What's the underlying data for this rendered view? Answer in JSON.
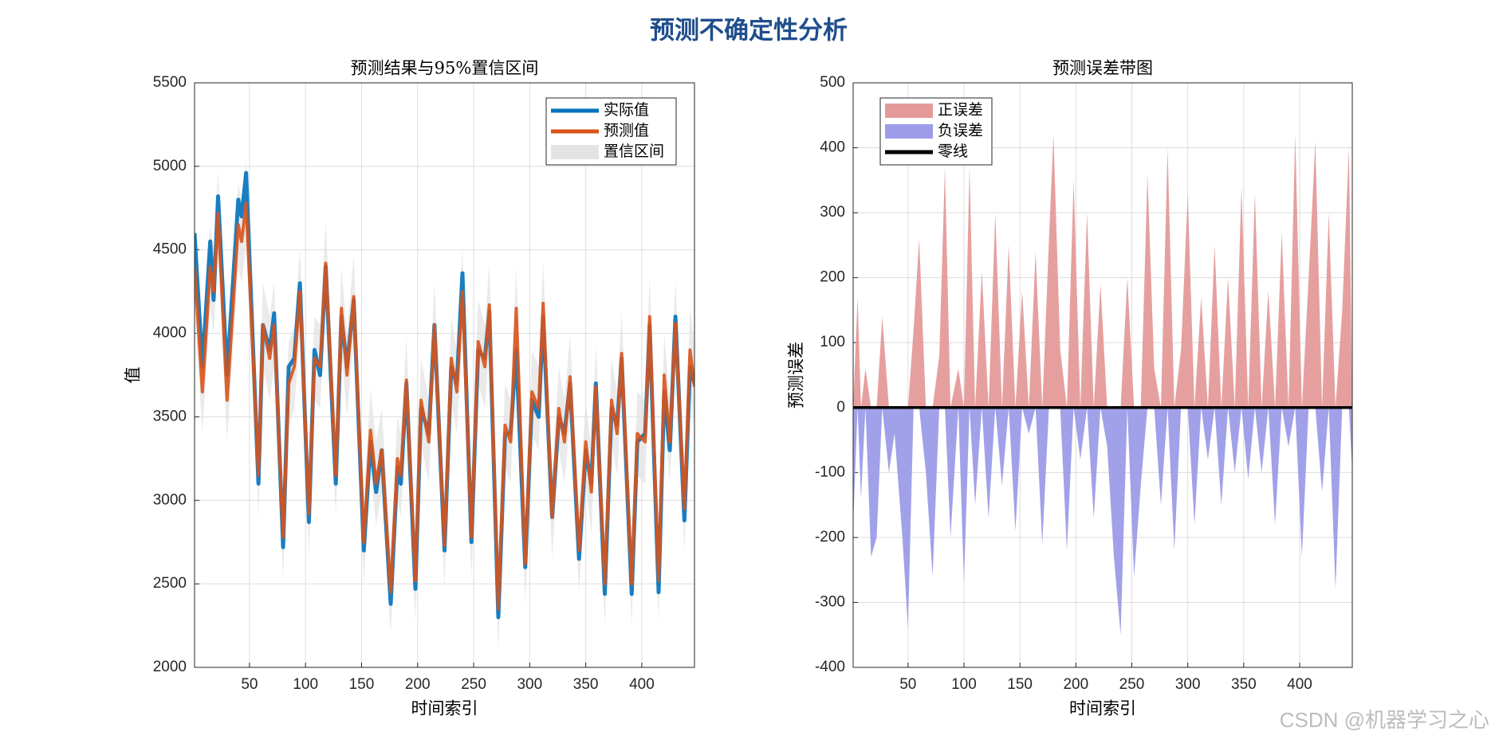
{
  "title": "预测不确定性分析",
  "watermark": "CSDN @机器学习之心",
  "chart_data": [
    {
      "type": "line",
      "title": "预测结果与95%置信区间",
      "xlabel": "时间索引",
      "ylabel": "值",
      "x": [
        1,
        8,
        15,
        18,
        22,
        30,
        40,
        43,
        47,
        58,
        62,
        68,
        72,
        80,
        85,
        90,
        95,
        103,
        108,
        113,
        118,
        127,
        132,
        137,
        143,
        152,
        158,
        163,
        168,
        176,
        182,
        185,
        190,
        198,
        203,
        210,
        215,
        224,
        230,
        235,
        240,
        248,
        254,
        260,
        264,
        272,
        278,
        283,
        288,
        296,
        302,
        308,
        312,
        320,
        326,
        331,
        336,
        344,
        350,
        355,
        359,
        367,
        373,
        378,
        382,
        391,
        396,
        403,
        407,
        415,
        420,
        425,
        430,
        438,
        443,
        447
      ],
      "series": [
        {
          "name": "实际值",
          "color": "#0072BD",
          "values": [
            4600,
            3800,
            4550,
            4200,
            4820,
            3750,
            4800,
            4700,
            4960,
            3100,
            4050,
            3900,
            4120,
            2720,
            3800,
            3850,
            4300,
            2870,
            3900,
            3750,
            4400,
            3100,
            4100,
            3800,
            4200,
            2700,
            3350,
            3050,
            3300,
            2380,
            3200,
            3100,
            3700,
            2470,
            3550,
            3400,
            4050,
            2700,
            3800,
            3700,
            4360,
            2750,
            3900,
            3850,
            4130,
            2300,
            3400,
            3400,
            3900,
            2600,
            3600,
            3500,
            4100,
            2900,
            3500,
            3400,
            3700,
            2650,
            3300,
            3100,
            3700,
            2440,
            3550,
            3450,
            3850,
            2440,
            3350,
            3400,
            4050,
            2450,
            3650,
            3300,
            4100,
            2880,
            3800,
            3700
          ]
        },
        {
          "name": "预测值",
          "color": "#D95319",
          "values": [
            4400,
            3650,
            4400,
            4250,
            4720,
            3600,
            4650,
            4550,
            4780,
            3150,
            4050,
            3850,
            4050,
            2780,
            3700,
            3800,
            4250,
            2920,
            3850,
            3800,
            4420,
            3150,
            4150,
            3750,
            4220,
            2750,
            3420,
            3100,
            3300,
            2450,
            3250,
            3150,
            3720,
            2520,
            3600,
            3350,
            4050,
            2730,
            3850,
            3650,
            4250,
            2780,
            3950,
            3800,
            4170,
            2350,
            3450,
            3350,
            4150,
            2620,
            3650,
            3550,
            4180,
            2900,
            3550,
            3350,
            3740,
            2700,
            3350,
            3050,
            3680,
            2500,
            3600,
            3400,
            3880,
            2500,
            3400,
            3350,
            4100,
            2520,
            3750,
            3350,
            4060,
            2950,
            3900,
            3680
          ]
        }
      ],
      "band": {
        "name": "置信区间",
        "color": "#e3e3e3",
        "lower": [
          4150,
          3400,
          4150,
          4000,
          4470,
          3350,
          4400,
          4300,
          4530,
          2900,
          3800,
          3600,
          3800,
          2530,
          3450,
          3550,
          4000,
          2670,
          3600,
          3550,
          4170,
          2900,
          3900,
          3500,
          3970,
          2500,
          3170,
          2850,
          3050,
          2200,
          3000,
          2900,
          3470,
          2270,
          3350,
          3100,
          3800,
          2480,
          3600,
          3400,
          4000,
          2530,
          3700,
          3550,
          3920,
          2100,
          3200,
          3100,
          3900,
          2370,
          3400,
          3300,
          3930,
          2650,
          3300,
          3100,
          3490,
          2450,
          3100,
          2800,
          3430,
          2250,
          3350,
          3150,
          3630,
          2250,
          3150,
          3100,
          3850,
          2270,
          3500,
          3100,
          3810,
          2700,
          3650,
          3430
        ],
        "upper": [
          4650,
          3900,
          4650,
          4500,
          4970,
          3850,
          4900,
          4800,
          5030,
          3400,
          4300,
          4100,
          4300,
          3030,
          3950,
          4050,
          4500,
          3170,
          4100,
          4050,
          4670,
          3400,
          4400,
          4000,
          4470,
          3000,
          3670,
          3350,
          3550,
          2700,
          3500,
          3400,
          3970,
          2770,
          3850,
          3600,
          4300,
          2980,
          4100,
          3900,
          4500,
          3030,
          4200,
          4050,
          4420,
          2600,
          3700,
          3600,
          4400,
          2870,
          3900,
          3800,
          4430,
          3150,
          3800,
          3600,
          3990,
          2950,
          3600,
          3300,
          3930,
          2750,
          3850,
          3650,
          4130,
          2750,
          3650,
          3600,
          4350,
          2770,
          4000,
          3600,
          4310,
          3200,
          4150,
          3930
        ]
      },
      "xlim": [
        1,
        447
      ],
      "ylim": [
        2000,
        5500
      ],
      "xticks": [
        50,
        100,
        150,
        200,
        250,
        300,
        350,
        400
      ],
      "yticks": [
        2000,
        2500,
        3000,
        3500,
        4000,
        4500,
        5000,
        5500
      ],
      "grid": true,
      "legend": "upper-right"
    },
    {
      "type": "area",
      "title": "预测误差带图",
      "xlabel": "时间索引",
      "ylabel": "预测误差",
      "x": [
        1,
        5,
        8,
        12,
        17,
        22,
        27,
        33,
        38,
        45,
        50,
        55,
        60,
        66,
        72,
        78,
        83,
        88,
        95,
        100,
        105,
        110,
        116,
        122,
        128,
        134,
        140,
        146,
        152,
        158,
        164,
        170,
        176,
        180,
        186,
        192,
        198,
        204,
        210,
        216,
        222,
        228,
        234,
        240,
        246,
        252,
        258,
        264,
        270,
        276,
        282,
        288,
        294,
        300,
        306,
        312,
        318,
        324,
        330,
        336,
        342,
        348,
        354,
        360,
        366,
        372,
        378,
        384,
        390,
        396,
        402,
        408,
        414,
        420,
        426,
        432,
        438,
        444,
        447
      ],
      "series": [
        {
          "name": "正误差",
          "color": "#e59a9a",
          "values": [
            0,
            170,
            0,
            60,
            0,
            0,
            140,
            0,
            0,
            0,
            0,
            120,
            260,
            0,
            0,
            80,
            370,
            0,
            60,
            0,
            370,
            0,
            210,
            0,
            300,
            0,
            250,
            0,
            180,
            0,
            240,
            0,
            260,
            420,
            90,
            0,
            350,
            0,
            300,
            0,
            190,
            0,
            0,
            0,
            200,
            0,
            0,
            360,
            60,
            0,
            400,
            0,
            90,
            330,
            0,
            170,
            0,
            250,
            0,
            200,
            0,
            340,
            0,
            330,
            0,
            180,
            0,
            270,
            0,
            420,
            0,
            200,
            410,
            0,
            300,
            0,
            150,
            400,
            0
          ]
        },
        {
          "name": "负误差",
          "color": "#9c9ce8",
          "values": [
            -180,
            0,
            -140,
            0,
            -230,
            -200,
            0,
            -100,
            -40,
            -200,
            -340,
            0,
            0,
            -100,
            -260,
            0,
            0,
            -200,
            0,
            -270,
            0,
            -150,
            0,
            -170,
            0,
            -120,
            0,
            -190,
            0,
            -40,
            0,
            -210,
            0,
            0,
            0,
            -220,
            0,
            -80,
            0,
            -170,
            0,
            -60,
            -230,
            -350,
            0,
            -260,
            -120,
            0,
            0,
            -150,
            0,
            -220,
            0,
            0,
            -180,
            0,
            -80,
            0,
            -150,
            0,
            -100,
            0,
            -110,
            0,
            -100,
            0,
            -180,
            0,
            -60,
            0,
            -230,
            0,
            0,
            -130,
            0,
            -280,
            0,
            0,
            -100
          ]
        }
      ],
      "reference_line": {
        "name": "零线",
        "value": 0,
        "color": "#000000"
      },
      "xlim": [
        1,
        447
      ],
      "ylim": [
        -400,
        500
      ],
      "xticks": [
        50,
        100,
        150,
        200,
        250,
        300,
        350,
        400
      ],
      "yticks": [
        -400,
        -300,
        -200,
        -100,
        0,
        100,
        200,
        300,
        400,
        500
      ],
      "grid": true,
      "legend": "upper-left"
    }
  ]
}
